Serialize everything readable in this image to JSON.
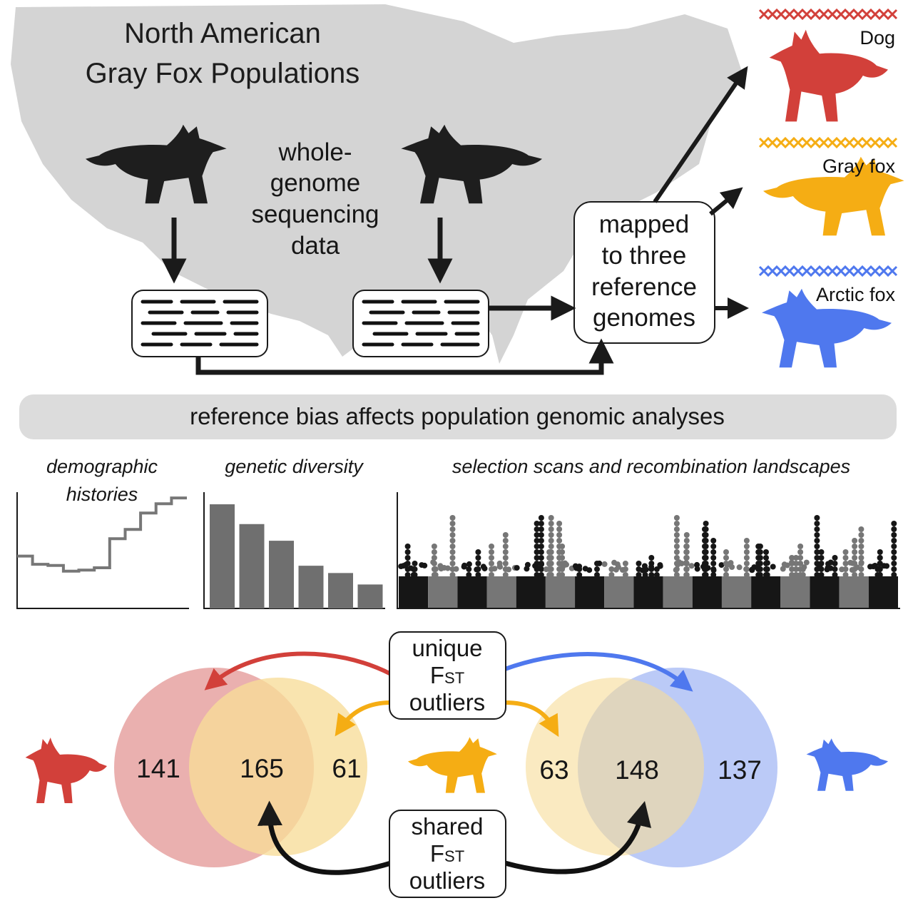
{
  "title_lines": [
    "North American",
    "Gray Fox Populations"
  ],
  "wgs_lines": [
    "whole-",
    "genome",
    "sequencing",
    "data"
  ],
  "mapped_lines": [
    "mapped",
    "to three",
    "reference",
    "genomes"
  ],
  "references": [
    {
      "label": "Dog",
      "color": "#d2403a"
    },
    {
      "label": "Gray fox",
      "color": "#f5ad14"
    },
    {
      "label": "Arctic fox",
      "color": "#4f78ee"
    }
  ],
  "banner": "reference bias affects population genomic analyses",
  "panels": {
    "demographic": [
      "demographic",
      "histories"
    ],
    "diversity": "genetic diversity",
    "selection": "selection scans and recombination landscapes"
  },
  "diversity_bars": [
    1.0,
    0.81,
    0.65,
    0.41,
    0.34,
    0.23
  ],
  "demographic_steps": [
    0.45,
    0.38,
    0.37,
    0.32,
    0.33,
    0.35,
    0.6,
    0.68,
    0.82,
    0.9,
    0.95
  ],
  "unique_box": {
    "line1": "unique",
    "f": "F",
    "sub": "ST",
    "line3": "outliers"
  },
  "shared_box": {
    "line1": "shared",
    "f": "F",
    "sub": "ST",
    "line3": "outliers"
  },
  "venn_left": {
    "left": "141",
    "overlap": "165",
    "right": "61"
  },
  "venn_right": {
    "left": "63",
    "overlap": "148",
    "right": "137"
  },
  "colors": {
    "dog": "#d2403a",
    "grayfox": "#f5ad14",
    "arcticfox": "#4f78ee",
    "map": "#d4d4d4",
    "venn_red": "#e8a7a6",
    "venn_yellow": "#f7dc98",
    "venn_blue": "#b4c4f6"
  }
}
